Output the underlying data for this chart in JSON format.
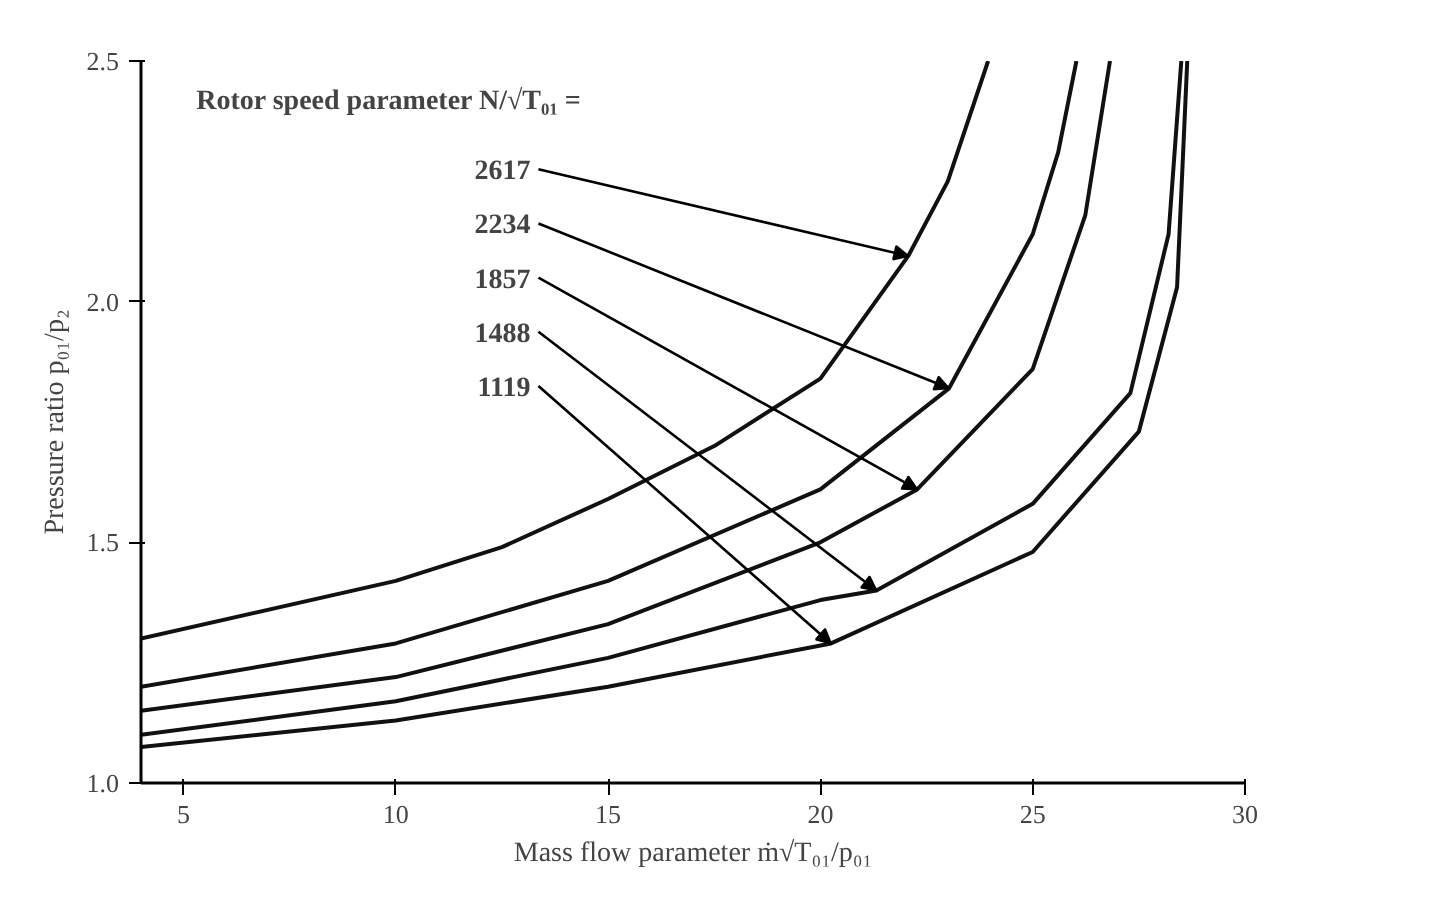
{
  "chart_data": {
    "type": "line",
    "legend_title": "Rotor speed parameter N/√T₀₁ =",
    "xlabel": "Mass flow parameter ṁ√T₀₁/p₀₁",
    "ylabel": "Pressure ratio p₀₁/p₂",
    "xlim": [
      4,
      30
    ],
    "xticks": [
      5,
      10,
      15,
      20,
      25,
      30
    ],
    "ylim": [
      1.0,
      2.5
    ],
    "yticks": [
      {
        "value": 1.0,
        "label": "1.0"
      },
      1.5,
      {
        "value": 2.0,
        "label": "2.0"
      },
      2.5
    ],
    "grid": false,
    "marker": "none",
    "line_style": "solid",
    "series": [
      {
        "color": "#111111",
        "x": [
          4,
          10,
          12.5,
          15,
          17.5,
          20,
          22.07,
          23.0,
          23.95
        ],
        "values": [
          1.3,
          1.42,
          1.49,
          1.59,
          1.7,
          1.84,
          2.095,
          2.25,
          2.5
        ]
      },
      {
        "color": "#111111",
        "x": [
          4,
          10,
          15,
          20,
          23.03,
          25,
          25.6,
          26.03
        ],
        "values": [
          1.2,
          1.29,
          1.42,
          1.61,
          1.82,
          2.14,
          2.31,
          2.5
        ]
      },
      {
        "color": "#111111",
        "x": [
          4,
          10,
          15,
          20,
          22.28,
          25,
          26.24,
          26.82
        ],
        "values": [
          1.15,
          1.22,
          1.33,
          1.5,
          1.61,
          1.86,
          2.18,
          2.5
        ]
      },
      {
        "color": "#111111",
        "x": [
          4,
          10,
          15,
          20,
          21.32,
          25,
          27.3,
          28.2,
          28.5
        ],
        "values": [
          1.1,
          1.17,
          1.26,
          1.38,
          1.4,
          1.58,
          1.81,
          2.14,
          2.5
        ]
      },
      {
        "color": "#111111",
        "x": [
          4,
          10,
          15,
          20.25,
          25,
          27.5,
          28.4,
          28.64
        ],
        "values": [
          1.075,
          1.13,
          1.2,
          1.29,
          1.48,
          1.73,
          2.03,
          2.5
        ]
      }
    ],
    "annotations": [
      {
        "text": "2617",
        "x": 22.07,
        "y": 2.095
      },
      {
        "text": "2234",
        "x": 23.03,
        "y": 1.82
      },
      {
        "text": "1857",
        "x": 22.28,
        "y": 1.61
      },
      {
        "text": "1488",
        "x": 21.32,
        "y": 1.4
      },
      {
        "text": "1119",
        "x": 20.25,
        "y": 1.29
      }
    ]
  }
}
